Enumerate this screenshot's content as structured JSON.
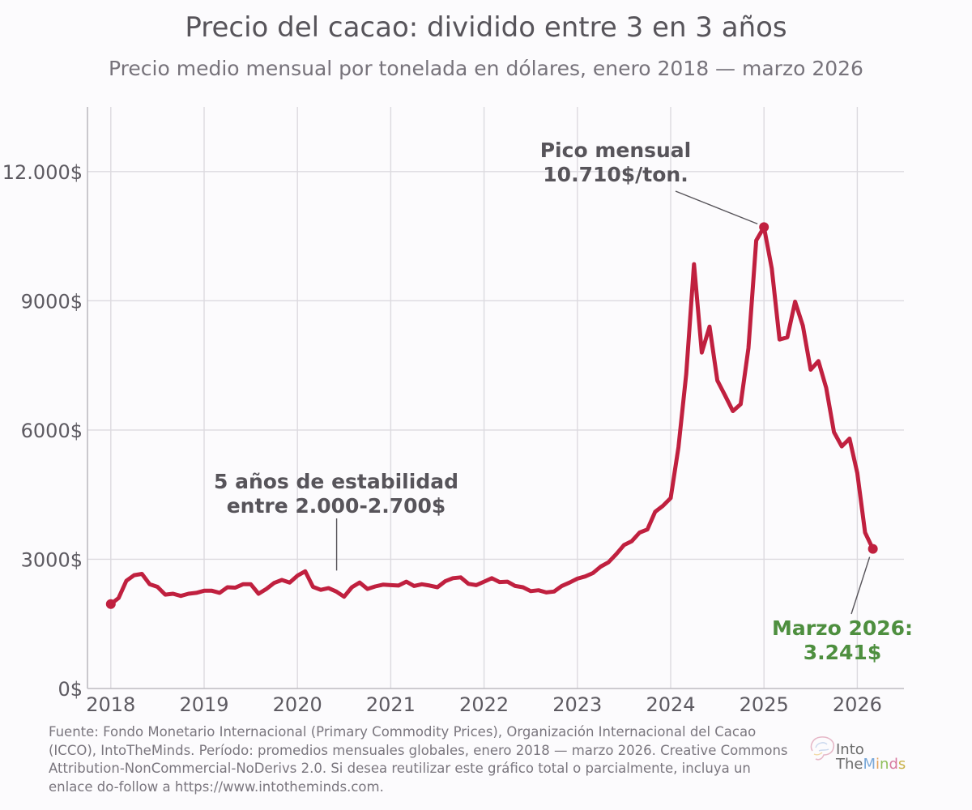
{
  "title": "Precio del cacao: dividido entre 3 en 3 años",
  "subtitle": "Precio medio mensual por tonelada en dólares, enero 2018 — marzo 2026",
  "source": "Fuente: Fondo Monetario Internacional (Primary Commodity Prices), Organización Internacional del Cacao (ICCO), IntoTheMinds. Período: promedios mensuales globales, enero 2018 — marzo 2026. Creative Commons Attribution-NonCommercial-NoDerivs 2.0. Si desea reutilizar este gráfico total o parcialmente, incluya un enlace do-follow a https://www.intotheminds.com.",
  "logo": {
    "line1": "Into",
    "line2_a": "The",
    "line2_b": "Minds"
  },
  "colors": {
    "line": "#c0203f",
    "annotation": "#57545a",
    "highlight": "#4e8f3f",
    "grid": "#dcdadf",
    "axis": "#bdbbc1",
    "tick": "#5d5a61"
  },
  "chart_data": {
    "type": "line",
    "xlim": [
      2017.75,
      2026.5
    ],
    "ylim": [
      0,
      13500
    ],
    "x_ticks": [
      2018,
      2019,
      2020,
      2021,
      2022,
      2023,
      2024,
      2025,
      2026
    ],
    "x_tick_labels": [
      "2018",
      "2019",
      "2020",
      "2021",
      "2022",
      "2023",
      "2024",
      "2025",
      "2026"
    ],
    "y_ticks": [
      0,
      3000,
      6000,
      9000,
      12000
    ],
    "y_tick_labels": [
      "0$",
      "3000$",
      "6000$",
      "9000$",
      "12.000$"
    ],
    "grid": true,
    "series": [
      {
        "x": [
          2018.0,
          2018.083,
          2018.167,
          2018.25,
          2018.333,
          2018.417,
          2018.5,
          2018.583,
          2018.667,
          2018.75,
          2018.833,
          2018.917,
          2019.0,
          2019.083,
          2019.167,
          2019.25,
          2019.333,
          2019.417,
          2019.5,
          2019.583,
          2019.667,
          2019.75,
          2019.833,
          2019.917,
          2020.0,
          2020.083,
          2020.167,
          2020.25,
          2020.333,
          2020.417,
          2020.5,
          2020.583,
          2020.667,
          2020.75,
          2020.833,
          2020.917,
          2021.0,
          2021.083,
          2021.167,
          2021.25,
          2021.333,
          2021.417,
          2021.5,
          2021.583,
          2021.667,
          2021.75,
          2021.833,
          2021.917,
          2022.0,
          2022.083,
          2022.167,
          2022.25,
          2022.333,
          2022.417,
          2022.5,
          2022.583,
          2022.667,
          2022.75,
          2022.833,
          2022.917,
          2023.0,
          2023.083,
          2023.167,
          2023.25,
          2023.333,
          2023.417,
          2023.5,
          2023.583,
          2023.667,
          2023.75,
          2023.833,
          2023.917,
          2024.0,
          2024.083,
          2024.167,
          2024.25,
          2024.333,
          2024.417,
          2024.5,
          2024.583,
          2024.667,
          2024.75,
          2024.833,
          2024.917,
          2025.0,
          2025.083,
          2025.167,
          2025.25,
          2025.333,
          2025.417,
          2025.5,
          2025.583,
          2025.667,
          2025.75,
          2025.833,
          2025.917,
          2026.0,
          2026.083,
          2026.167
        ],
        "y": [
          1960,
          2100,
          2500,
          2630,
          2660,
          2420,
          2360,
          2180,
          2200,
          2150,
          2200,
          2220,
          2270,
          2270,
          2220,
          2350,
          2340,
          2420,
          2420,
          2200,
          2310,
          2450,
          2520,
          2460,
          2620,
          2720,
          2360,
          2290,
          2330,
          2250,
          2130,
          2350,
          2460,
          2310,
          2370,
          2410,
          2400,
          2390,
          2480,
          2380,
          2420,
          2390,
          2350,
          2490,
          2560,
          2580,
          2430,
          2400,
          2480,
          2560,
          2470,
          2480,
          2380,
          2350,
          2260,
          2280,
          2230,
          2250,
          2380,
          2460,
          2550,
          2600,
          2680,
          2830,
          2930,
          3120,
          3330,
          3420,
          3620,
          3690,
          4100,
          4240,
          4420,
          5600,
          7300,
          9850,
          7800,
          8400,
          7150,
          6800,
          6440,
          6600,
          7900,
          10400,
          10710,
          9750,
          8100,
          8150,
          8980,
          8420,
          7400,
          7600,
          6980,
          5950,
          5620,
          5800,
          5000,
          3620,
          3241
        ]
      }
    ],
    "annotations": [
      {
        "id": "stability",
        "line1": "5 años de estabilidad",
        "line2": "entre 2.000-2.700$",
        "x": 2020.42,
        "y": 2550
      },
      {
        "id": "peak",
        "line1": "Pico mensual",
        "line2": "10.710$/ton.",
        "x": 2025.0,
        "y": 10710
      },
      {
        "id": "march2026",
        "line1": "Marzo 2026:",
        "line2": "3.241$",
        "x": 2026.167,
        "y": 3241
      }
    ],
    "highlight_points": [
      {
        "x": 2018.0,
        "y": 1960
      },
      {
        "x": 2025.0,
        "y": 10710
      },
      {
        "x": 2026.167,
        "y": 3241
      }
    ]
  }
}
